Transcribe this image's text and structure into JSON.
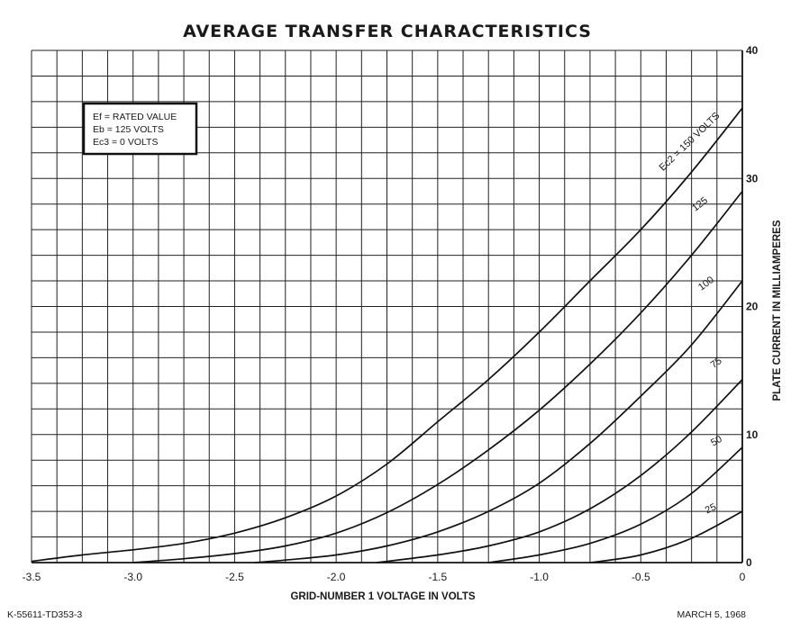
{
  "chart_data": {
    "type": "line",
    "title": "AVERAGE TRANSFER CHARACTERISTICS",
    "xlabel": "GRID-NUMBER 1 VOLTAGE IN VOLTS",
    "ylabel": "PLATE CURRENT IN MILLIAMPERES",
    "xlim": [
      -3.5,
      0
    ],
    "ylim": [
      0,
      40
    ],
    "x_ticks": [
      -3.5,
      -3.0,
      -2.5,
      -2.0,
      -1.5,
      -1.0,
      -0.5,
      0
    ],
    "x_tick_labels": [
      "-3.5",
      "-3.0",
      "-2.5",
      "-2.0",
      "-1.5",
      "-1.0",
      "-0.5",
      "0"
    ],
    "y_ticks": [
      0,
      10,
      20,
      30,
      40
    ],
    "y_tick_labels": [
      "0",
      "10",
      "20",
      "30",
      "40"
    ],
    "grid": true,
    "grid_minor": {
      "x_step": 0.125,
      "y_step": 2
    },
    "legend_box": {
      "position": "top-left",
      "lines": [
        "Ef = RATED VALUE",
        "Eb = 125 VOLTS",
        "Ec3 = 0 VOLTS"
      ]
    },
    "series": [
      {
        "name": "Ec2 = 150 VOLTS",
        "x": [
          -3.5,
          -3.25,
          -3.0,
          -2.75,
          -2.5,
          -2.25,
          -2.0,
          -1.75,
          -1.5,
          -1.25,
          -1.0,
          -0.75,
          -0.5,
          -0.25,
          0.0
        ],
        "y": [
          0.1,
          0.6,
          1.0,
          1.5,
          2.3,
          3.5,
          5.2,
          7.7,
          11.0,
          14.3,
          18.0,
          22.0,
          26.0,
          30.5,
          35.5
        ]
      },
      {
        "name": "125",
        "x": [
          -3.0,
          -2.75,
          -2.5,
          -2.25,
          -2.0,
          -1.75,
          -1.5,
          -1.25,
          -1.0,
          -0.75,
          -0.5,
          -0.25,
          0.0
        ],
        "y": [
          0.0,
          0.3,
          0.7,
          1.3,
          2.3,
          3.9,
          6.1,
          8.8,
          11.9,
          15.5,
          19.5,
          24.0,
          29.0
        ]
      },
      {
        "name": "100",
        "x": [
          -2.4,
          -2.25,
          -2.0,
          -1.75,
          -1.5,
          -1.25,
          -1.0,
          -0.75,
          -0.5,
          -0.25,
          0.0
        ],
        "y": [
          0.0,
          0.2,
          0.6,
          1.3,
          2.4,
          4.0,
          6.2,
          9.3,
          13.0,
          17.0,
          22.0
        ]
      },
      {
        "name": "75",
        "x": [
          -1.8,
          -1.5,
          -1.25,
          -1.0,
          -0.75,
          -0.5,
          -0.25,
          0.0
        ],
        "y": [
          0.0,
          0.6,
          1.3,
          2.4,
          4.2,
          6.8,
          10.2,
          14.3
        ]
      },
      {
        "name": "50",
        "x": [
          -1.25,
          -1.0,
          -0.75,
          -0.5,
          -0.25,
          0.0
        ],
        "y": [
          0.0,
          0.6,
          1.5,
          3.0,
          5.4,
          9.0
        ]
      },
      {
        "name": "25",
        "x": [
          -0.75,
          -0.5,
          -0.25,
          0.0
        ],
        "y": [
          0.0,
          0.6,
          1.9,
          4.0
        ]
      }
    ],
    "curve_labels": [
      {
        "text": "Ec2 = 150 VOLTS",
        "x": -0.25,
        "y": 32.7,
        "angle": -44
      },
      {
        "text": "125",
        "x": -0.2,
        "y": 27.8,
        "angle": -38
      },
      {
        "text": "100",
        "x": -0.17,
        "y": 21.6,
        "angle": -36
      },
      {
        "text": "75",
        "x": -0.12,
        "y": 15.4,
        "angle": -36
      },
      {
        "text": "50",
        "x": -0.12,
        "y": 9.3,
        "angle": -30
      },
      {
        "text": "25",
        "x": -0.15,
        "y": 4.0,
        "angle": -25
      }
    ]
  },
  "footer": {
    "left": "K-55611-TD353-3",
    "right": "MARCH 5, 1968"
  }
}
